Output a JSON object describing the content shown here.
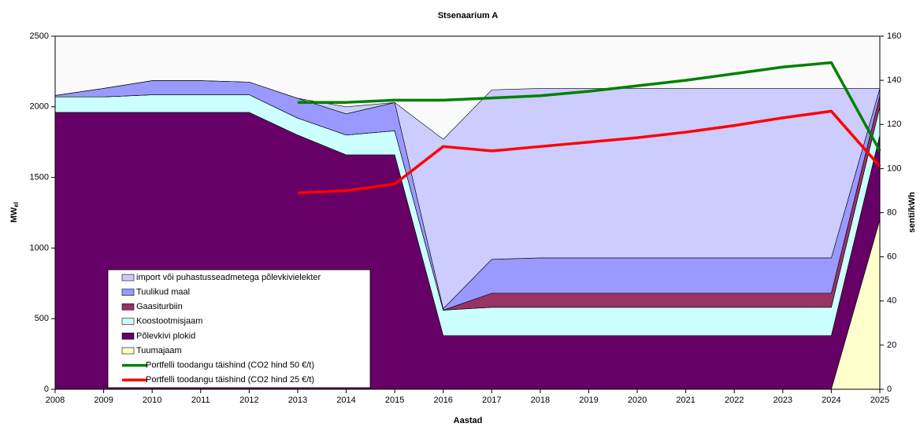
{
  "chart_data": {
    "type": "stacked-area-line",
    "title": "Stsenaarium A",
    "x_label": "Aastad",
    "y_label": "MW",
    "y_label_subscript": "el",
    "y2_label": "senti/kWh",
    "x": [
      2008,
      2009,
      2010,
      2011,
      2012,
      2013,
      2014,
      2015,
      2016,
      2017,
      2018,
      2019,
      2020,
      2021,
      2022,
      2023,
      2024,
      2025
    ],
    "xlim": [
      2008,
      2025
    ],
    "ylim": [
      0,
      2500
    ],
    "yticks": [
      0,
      500,
      1000,
      1500,
      2000,
      2500
    ],
    "y2lim": [
      0,
      160
    ],
    "y2ticks": [
      0,
      20,
      40,
      60,
      80,
      100,
      120,
      140,
      160
    ],
    "series": [
      {
        "name": "import või puhastusseadmetega põlevkivielekter",
        "color": "#ccccff",
        "values": [
          0,
          0,
          0,
          0,
          0,
          0,
          50,
          0,
          1200,
          1200,
          1200,
          1200,
          1200,
          1200,
          1200,
          1200,
          1200,
          0
        ]
      },
      {
        "name": "Tuulikud maal",
        "color": "#9999ff",
        "values": [
          10,
          60,
          100,
          100,
          90,
          140,
          150,
          200,
          10,
          240,
          250,
          250,
          250,
          250,
          250,
          250,
          250,
          50
        ]
      },
      {
        "name": "Gaasiturbiin",
        "color": "#993366",
        "values": [
          0,
          0,
          0,
          0,
          0,
          0,
          0,
          0,
          0,
          100,
          100,
          100,
          100,
          100,
          100,
          100,
          100,
          80
        ]
      },
      {
        "name": "Koostootmisjaam",
        "color": "#ccffff",
        "values": [
          110,
          110,
          125,
          125,
          125,
          120,
          140,
          170,
          180,
          200,
          200,
          200,
          200,
          200,
          200,
          200,
          200,
          200
        ]
      },
      {
        "name": "Põlevkivi plokid",
        "color": "#660066",
        "values": [
          1960,
          1960,
          1960,
          1960,
          1960,
          1800,
          1660,
          1660,
          380,
          380,
          380,
          380,
          380,
          380,
          380,
          380,
          380,
          600
        ]
      },
      {
        "name": "Tuumajaam",
        "color": "#ffffcc",
        "values": [
          0,
          0,
          0,
          0,
          0,
          0,
          0,
          0,
          0,
          0,
          0,
          0,
          0,
          0,
          0,
          0,
          0,
          1200
        ]
      },
      {
        "name": "Portfelli toodangu täishind (CO2 hind 50 €/t)",
        "color": "#008000",
        "axis": "y2",
        "values": [
          null,
          null,
          null,
          null,
          null,
          130,
          130,
          131,
          131,
          132,
          133,
          135,
          137.5,
          140,
          143,
          146,
          148,
          108
        ]
      },
      {
        "name": "Portfelli toodangu täishind (CO2 hind 25 €/t)",
        "color": "#ff0000",
        "axis": "y2",
        "values": [
          null,
          null,
          null,
          null,
          null,
          89,
          90,
          93,
          110,
          108,
          110,
          112,
          114,
          116.5,
          119.5,
          123,
          126,
          101
        ]
      }
    ]
  }
}
